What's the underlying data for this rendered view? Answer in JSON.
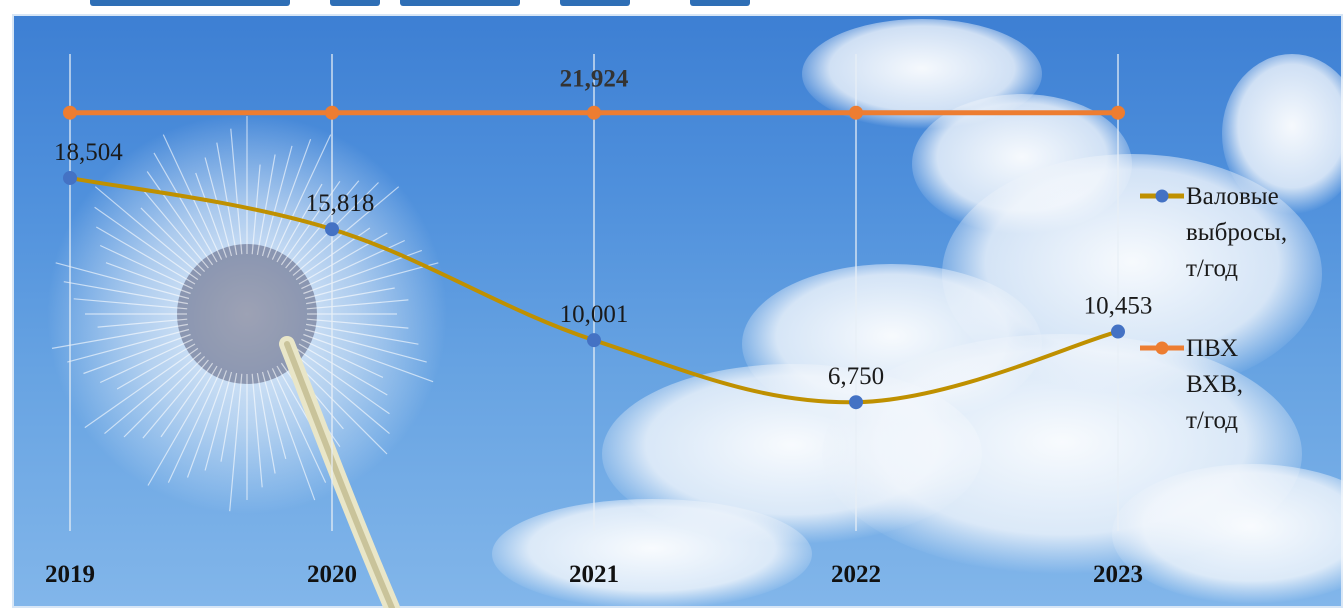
{
  "chart_data": {
    "type": "line",
    "title": "",
    "xlabel": "",
    "ylabel": "",
    "categories": [
      "2019",
      "2020",
      "2021",
      "2022",
      "2023"
    ],
    "ylim": [
      0,
      25
    ],
    "grid": {
      "vertical": true,
      "horizontal": false
    },
    "legend": {
      "placement": "right"
    },
    "series": [
      {
        "name": "Валовые выбросы, т/год",
        "legend_lines": [
          "Валовые",
          "выбросы,",
          "т/год"
        ],
        "values": [
          18.504,
          15.818,
          10.001,
          6.75,
          10.453
        ],
        "labels": [
          "18,504",
          "15,818",
          "10,001",
          "6,750",
          "10,453"
        ],
        "line_color": "#bf9000",
        "marker_color": "#4472c4",
        "smooth": true
      },
      {
        "name": "ПВХ ВХВ, т/год",
        "legend_lines": [
          "ПВХ",
          "ВХВ,",
          "т/год"
        ],
        "values": [
          21.924,
          21.924,
          21.924,
          21.924,
          21.924
        ],
        "labels": [
          "",
          "",
          "21,924",
          "",
          ""
        ],
        "line_color": "#ed7d31",
        "marker_color": "#ed7d31",
        "smooth": false
      }
    ]
  }
}
